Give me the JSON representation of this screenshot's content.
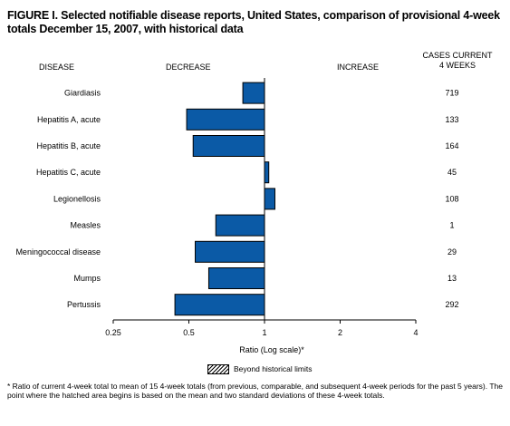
{
  "title": "FIGURE I. Selected notifiable disease reports, United States, comparison of provisional 4-week totals December 15, 2007, with historical data",
  "headers": {
    "disease": "DISEASE",
    "decrease": "DECREASE",
    "increase": "INCREASE",
    "cases_line1": "CASES CURRENT",
    "cases_line2": "4 WEEKS"
  },
  "legend_label": "Beyond historical limits",
  "footnote": "* Ratio of current 4-week total to mean of 15 4-week totals (from previous, comparable, and subsequent 4-week periods for the past 5 years). The point where the hatched area begins is based on the mean and two standard deviations of these 4-week totals.",
  "colors": {
    "bar": "#0b5aa6",
    "bar_border": "#000000"
  },
  "chart_data": {
    "type": "bar",
    "orientation": "horizontal",
    "xlabel": "Ratio (Log scale)*",
    "x_scale": "log2",
    "xlim": [
      0.25,
      4
    ],
    "x_ticks": [
      0.25,
      0.5,
      1,
      2,
      4
    ],
    "x_tick_labels": [
      "0.25",
      "0.5",
      "1",
      "2",
      "4"
    ],
    "reference_line": 1,
    "categories": [
      "Giardiasis",
      "Hepatitis A, acute",
      "Hepatitis B, acute",
      "Hepatitis C, acute",
      "Legionellosis",
      "Measles",
      "Meningococcal disease",
      "Mumps",
      "Pertussis"
    ],
    "values": [
      0.82,
      0.49,
      0.52,
      1.04,
      1.1,
      0.64,
      0.53,
      0.6,
      0.44
    ],
    "cases_current_4_weeks": [
      "719",
      "133",
      "164",
      "45",
      "108",
      "1",
      "29",
      "13",
      "292"
    ]
  }
}
